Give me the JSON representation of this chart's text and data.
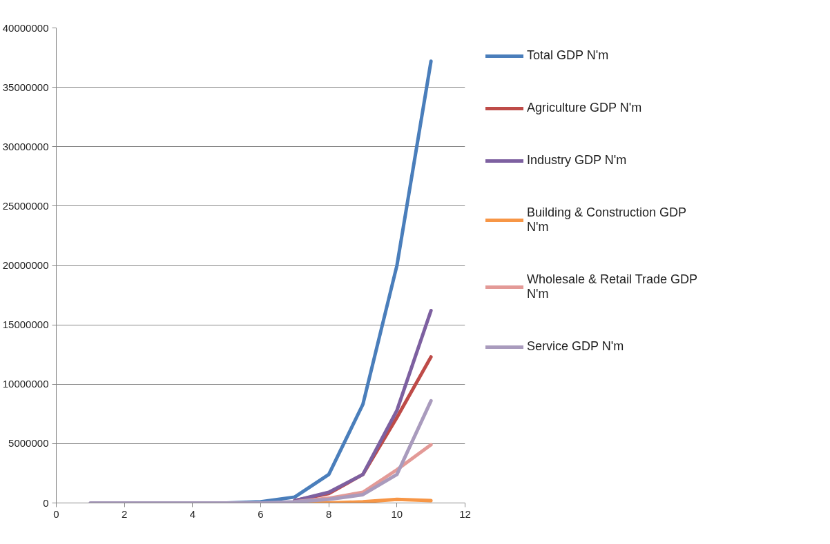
{
  "chart_data": {
    "type": "line",
    "x": [
      1,
      2,
      3,
      4,
      5,
      6,
      7,
      8,
      9,
      10,
      11
    ],
    "xlim": [
      0,
      12
    ],
    "xticks": [
      0,
      2,
      4,
      6,
      8,
      10,
      12
    ],
    "ylim": [
      0,
      40000000
    ],
    "yticks": [
      0,
      5000000,
      10000000,
      15000000,
      20000000,
      25000000,
      30000000,
      35000000,
      40000000
    ],
    "grid": "y",
    "legend": "right",
    "line_style": "solid",
    "marker": "none",
    "series": [
      {
        "name": "Total GDP N'm",
        "color": "#4a7ebb",
        "values": [
          null,
          null,
          null,
          0,
          0,
          100000,
          500000,
          2400000,
          8300000,
          20000000,
          37200000
        ]
      },
      {
        "name": "Agriculture GDP N'm",
        "color": "#be4b48",
        "values": [
          null,
          null,
          null,
          null,
          null,
          null,
          200000,
          800000,
          2400000,
          7200000,
          12300000
        ]
      },
      {
        "name": "Industry GDP N'm",
        "color": "#7d60a0",
        "values": [
          null,
          null,
          null,
          null,
          null,
          null,
          200000,
          900000,
          2400000,
          7800000,
          16200000
        ]
      },
      {
        "name": "Building & Construction GDP N'm",
        "color": "#f79646",
        "values": [
          null,
          null,
          null,
          null,
          null,
          null,
          0,
          0,
          100000,
          300000,
          200000
        ]
      },
      {
        "name": "Wholesale & Retail Trade GDP N'm",
        "color": "#e39a97",
        "values": [
          null,
          null,
          null,
          null,
          null,
          null,
          100000,
          400000,
          900000,
          2800000,
          4900000
        ]
      },
      {
        "name": "Service GDP N'm",
        "color": "#a99bbd",
        "values": [
          0,
          0,
          0,
          0,
          0,
          0,
          100000,
          300000,
          700000,
          2400000,
          8600000
        ]
      }
    ]
  }
}
